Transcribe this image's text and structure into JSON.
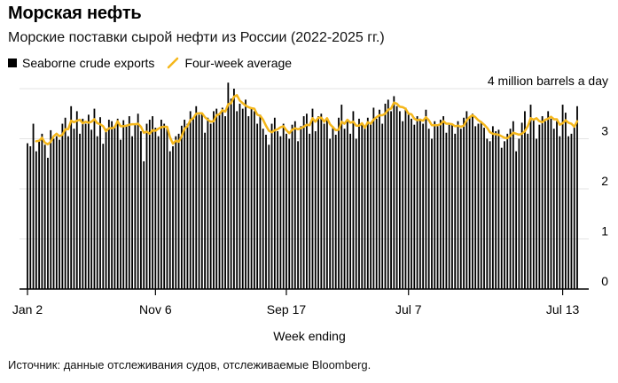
{
  "title": "Морская нефть",
  "subtitle": "Морские поставки сырой нефти из России (2022-2025 гг.)",
  "legend": {
    "series1": "Seaborne crude exports",
    "series2": "Four-week average"
  },
  "source": "Источник: данные отслеживания судов, отслеживаемые Bloomberg.",
  "colors": {
    "bars": "#000000",
    "average": "#f5b71b",
    "grid": "#e3e3e3"
  },
  "chart_data": {
    "type": "bar+line",
    "ylabel": "4 million barrels a day",
    "xlabel": "Week ending",
    "ylim": [
      0,
      4
    ],
    "yticks": [
      {
        "value": 0,
        "label": "0"
      },
      {
        "value": 1,
        "label": "1"
      },
      {
        "value": 2,
        "label": "2"
      },
      {
        "value": 3,
        "label": "3"
      },
      {
        "value": 4,
        "label": "4 million barrels a day"
      }
    ],
    "xticks": [
      {
        "index": 0,
        "label": "Jan 2"
      },
      {
        "index": 44,
        "label": "Nov 6"
      },
      {
        "index": 89,
        "label": "Sep 17"
      },
      {
        "index": 131,
        "label": "Jul 7"
      },
      {
        "index": 184,
        "label": "Jul 13"
      }
    ],
    "grid": true,
    "series": [
      {
        "name": "Seaborne crude exports",
        "kind": "bar",
        "values": [
          2.91,
          2.85,
          3.3,
          2.75,
          2.95,
          3.1,
          2.88,
          2.62,
          3.17,
          3.0,
          3.05,
          2.98,
          3.3,
          3.42,
          3.05,
          3.65,
          3.2,
          3.55,
          3.1,
          3.4,
          3.3,
          3.48,
          3.18,
          3.6,
          3.05,
          3.43,
          2.9,
          3.2,
          3.38,
          3.35,
          3.26,
          3.4,
          2.98,
          3.37,
          3.28,
          3.45,
          3.05,
          3.28,
          3.5,
          3.15,
          2.55,
          3.3,
          3.38,
          3.45,
          3.22,
          3.05,
          3.38,
          3.3,
          3.2,
          2.75,
          2.85,
          3.05,
          3.1,
          3.26,
          3.38,
          3.3,
          3.55,
          3.4,
          3.65,
          3.48,
          3.52,
          3.12,
          3.42,
          3.3,
          3.55,
          3.6,
          3.5,
          3.62,
          3.45,
          4.12,
          3.8,
          4.0,
          3.55,
          3.7,
          3.6,
          3.78,
          3.45,
          3.62,
          3.55,
          3.3,
          3.48,
          3.2,
          3.08,
          2.88,
          3.3,
          3.42,
          3.15,
          3.05,
          3.3,
          3.1,
          3.0,
          3.28,
          3.35,
          2.95,
          3.25,
          3.45,
          3.5,
          3.1,
          3.6,
          3.15,
          3.45,
          3.5,
          3.3,
          3.38,
          3.0,
          3.25,
          3.08,
          3.42,
          3.68,
          3.2,
          3.35,
          3.1,
          3.55,
          3.0,
          3.4,
          3.3,
          3.2,
          3.42,
          3.3,
          3.62,
          3.4,
          3.58,
          3.3,
          3.7,
          3.78,
          3.55,
          3.85,
          3.65,
          3.55,
          3.35,
          3.62,
          3.48,
          3.4,
          3.28,
          3.45,
          3.4,
          3.3,
          3.58,
          3.2,
          3.0,
          3.35,
          3.25,
          3.38,
          3.45,
          3.12,
          3.28,
          3.3,
          3.1,
          3.35,
          3.2,
          3.42,
          3.55,
          3.42,
          3.5,
          3.25,
          3.3,
          3.35,
          3.22,
          3.0,
          2.95,
          3.25,
          3.15,
          3.18,
          2.82,
          2.95,
          3.1,
          3.2,
          3.35,
          2.75,
          3.0,
          3.32,
          3.55,
          3.1,
          3.68,
          3.4,
          3.0,
          3.28,
          3.45,
          3.35,
          3.55,
          3.4,
          3.2,
          3.35,
          3.05,
          3.68,
          3.52,
          3.05,
          3.1,
          3.25,
          3.65
        ]
      },
      {
        "name": "Four-week average",
        "kind": "line",
        "values": [
          null,
          null,
          null,
          2.95,
          2.96,
          3.02,
          2.92,
          2.89,
          2.94,
          3.05,
          3.1,
          3.05,
          3.08,
          3.19,
          3.19,
          3.36,
          3.33,
          3.36,
          3.38,
          3.31,
          3.34,
          3.32,
          3.34,
          3.39,
          3.31,
          3.29,
          3.25,
          3.15,
          3.21,
          3.21,
          3.23,
          3.35,
          3.25,
          3.25,
          3.26,
          3.28,
          3.29,
          3.29,
          3.3,
          3.24,
          3.12,
          3.14,
          3.1,
          3.17,
          3.16,
          3.2,
          3.23,
          3.24,
          3.24,
          3.03,
          2.9,
          2.96,
          2.94,
          3.05,
          3.2,
          3.25,
          3.37,
          3.41,
          3.5,
          3.51,
          3.51,
          3.43,
          3.38,
          3.34,
          3.35,
          3.47,
          3.49,
          3.57,
          3.54,
          3.69,
          3.71,
          3.84,
          3.87,
          3.76,
          3.71,
          3.66,
          3.63,
          3.61,
          3.6,
          3.48,
          3.46,
          3.38,
          3.26,
          3.16,
          3.13,
          3.17,
          3.19,
          3.23,
          3.25,
          3.17,
          3.11,
          3.18,
          3.21,
          3.19,
          3.21,
          3.24,
          3.28,
          3.27,
          3.41,
          3.34,
          3.42,
          3.42,
          3.34,
          3.41,
          3.29,
          3.23,
          3.17,
          3.18,
          3.34,
          3.3,
          3.38,
          3.32,
          3.34,
          3.26,
          3.26,
          3.31,
          3.22,
          3.33,
          3.3,
          3.38,
          3.43,
          3.47,
          3.47,
          3.5,
          3.58,
          3.6,
          3.72,
          3.7,
          3.64,
          3.63,
          3.6,
          3.5,
          3.49,
          3.4,
          3.37,
          3.38,
          3.36,
          3.43,
          3.37,
          3.27,
          3.27,
          3.27,
          3.29,
          3.35,
          3.3,
          3.3,
          3.29,
          3.25,
          3.26,
          3.24,
          3.26,
          3.37,
          3.43,
          3.47,
          3.43,
          3.37,
          3.33,
          3.28,
          3.22,
          3.13,
          3.1,
          3.09,
          3.08,
          3.05,
          3.02,
          3.01,
          3.06,
          3.12,
          3.1,
          3.08,
          3.1,
          3.15,
          3.25,
          3.41,
          3.38,
          3.41,
          3.35,
          3.33,
          3.38,
          3.4,
          3.44,
          3.39,
          3.39,
          3.28,
          3.31,
          3.37,
          3.32,
          3.3,
          3.24,
          3.35
        ]
      }
    ]
  }
}
